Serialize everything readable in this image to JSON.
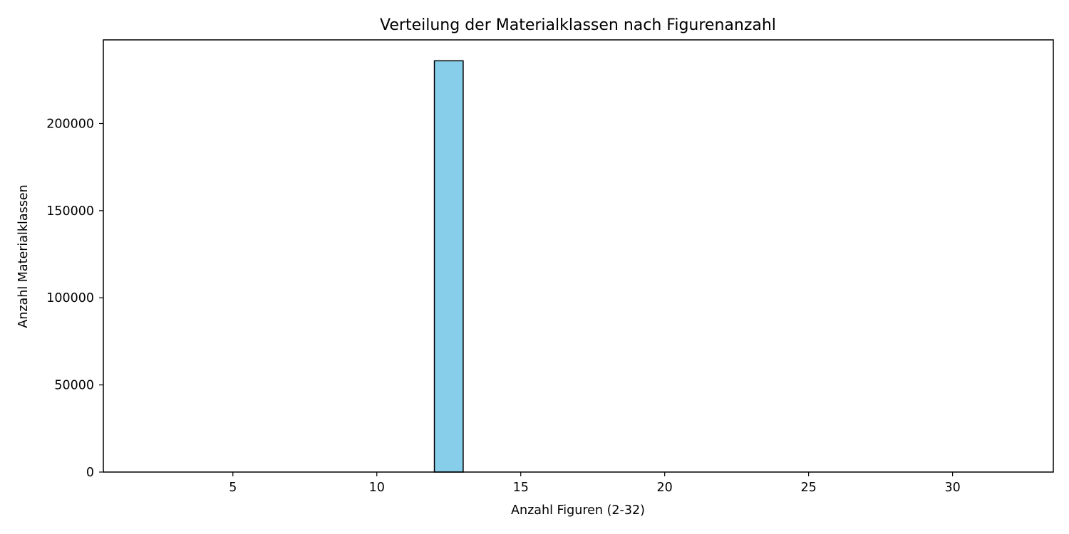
{
  "chart_data": {
    "type": "bar",
    "title": "Verteilung der Materialklassen nach Figurenanzahl",
    "xlabel": "Anzahl Figuren (2-32)",
    "ylabel": "Anzahl Materialklassen",
    "xlim": [
      0.5,
      33.5
    ],
    "ylim": [
      0,
      248000
    ],
    "x_ticks": [
      5,
      10,
      15,
      20,
      25,
      30
    ],
    "y_ticks": [
      0,
      50000,
      100000,
      150000,
      200000
    ],
    "bins": [
      {
        "x0": 2,
        "x1": 3,
        "value": 0
      },
      {
        "x0": 3,
        "x1": 4,
        "value": 0
      },
      {
        "x0": 4,
        "x1": 5,
        "value": 0
      },
      {
        "x0": 5,
        "x1": 6,
        "value": 0
      },
      {
        "x0": 6,
        "x1": 7,
        "value": 0
      },
      {
        "x0": 7,
        "x1": 8,
        "value": 0
      },
      {
        "x0": 8,
        "x1": 9,
        "value": 0
      },
      {
        "x0": 9,
        "x1": 10,
        "value": 0
      },
      {
        "x0": 10,
        "x1": 11,
        "value": 0
      },
      {
        "x0": 11,
        "x1": 12,
        "value": 0
      },
      {
        "x0": 12,
        "x1": 13,
        "value": 236000
      },
      {
        "x0": 13,
        "x1": 14,
        "value": 0
      },
      {
        "x0": 14,
        "x1": 15,
        "value": 0
      },
      {
        "x0": 15,
        "x1": 16,
        "value": 0
      },
      {
        "x0": 16,
        "x1": 17,
        "value": 0
      },
      {
        "x0": 17,
        "x1": 18,
        "value": 0
      },
      {
        "x0": 18,
        "x1": 19,
        "value": 0
      },
      {
        "x0": 19,
        "x1": 20,
        "value": 0
      },
      {
        "x0": 20,
        "x1": 21,
        "value": 0
      },
      {
        "x0": 21,
        "x1": 22,
        "value": 0
      },
      {
        "x0": 22,
        "x1": 23,
        "value": 0
      },
      {
        "x0": 23,
        "x1": 24,
        "value": 0
      },
      {
        "x0": 24,
        "x1": 25,
        "value": 0
      },
      {
        "x0": 25,
        "x1": 26,
        "value": 0
      },
      {
        "x0": 26,
        "x1": 27,
        "value": 0
      },
      {
        "x0": 27,
        "x1": 28,
        "value": 0
      },
      {
        "x0": 28,
        "x1": 29,
        "value": 0
      },
      {
        "x0": 29,
        "x1": 30,
        "value": 0
      },
      {
        "x0": 30,
        "x1": 31,
        "value": 0
      },
      {
        "x0": 31,
        "x1": 32,
        "value": 0
      }
    ],
    "bar_color": "#87ceeb",
    "edge_color": "#000000",
    "grid": false,
    "legend": "none"
  }
}
